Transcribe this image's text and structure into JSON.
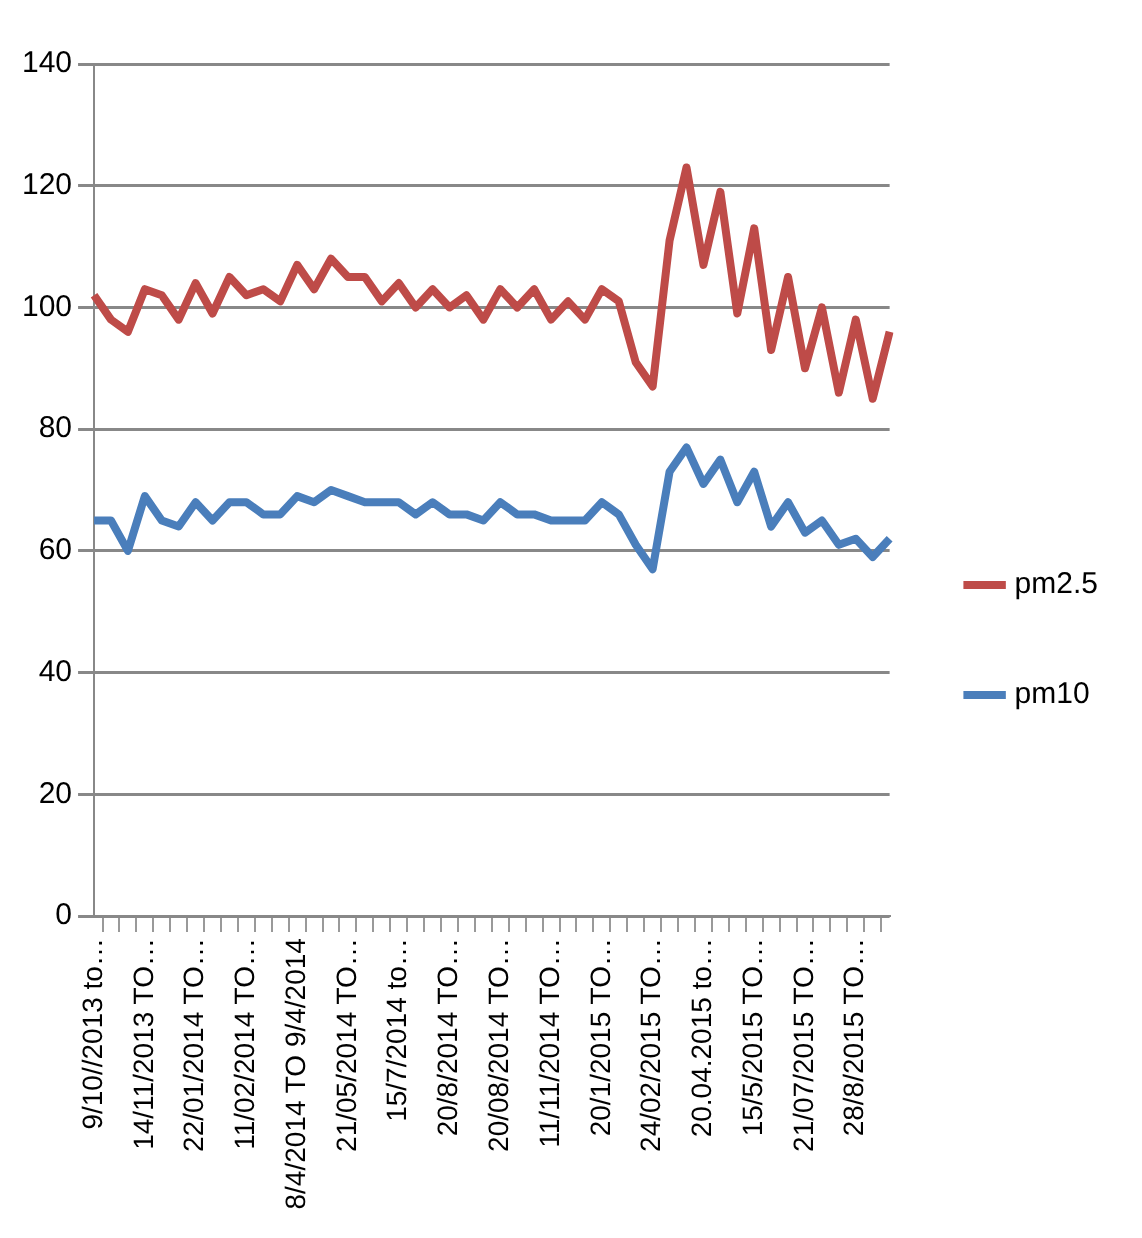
{
  "chart_data": {
    "type": "line",
    "categories": [
      "9/10//2013 to…",
      null,
      null,
      "14/11/2013 TO…",
      null,
      null,
      "22/01/2014 TO…",
      null,
      null,
      "11/02/2014 TO…",
      null,
      null,
      "8/4/2014 TO 9/4/2014",
      null,
      null,
      "21/05/2014 TO…",
      null,
      null,
      "15/7/2014 to…",
      null,
      null,
      "20/8/2014 TO…",
      null,
      null,
      "20/08/2014 TO…",
      null,
      null,
      "11/11/2014 TO…",
      null,
      null,
      "20/1/2015 TO…",
      null,
      null,
      "24/02/2015 TO…",
      null,
      null,
      "20.04.2015 to…",
      null,
      null,
      "15/5/2015 TO…",
      null,
      null,
      "21/07/2015 TO…",
      null,
      null,
      "28/8/2015 TO…",
      null,
      null
    ],
    "series": [
      {
        "name": "pm2.5",
        "color": "#be4b48",
        "values": [
          102,
          98,
          96,
          103,
          102,
          98,
          104,
          99,
          105,
          102,
          103,
          101,
          107,
          103,
          108,
          105,
          105,
          101,
          104,
          100,
          103,
          100,
          102,
          98,
          103,
          100,
          103,
          98,
          101,
          98,
          103,
          101,
          91,
          87,
          111,
          123,
          107,
          119,
          99,
          113,
          93,
          105,
          90,
          100,
          86,
          98,
          85,
          96
        ]
      },
      {
        "name": "pm10",
        "color": "#4a7ebb",
        "values": [
          65,
          65,
          60,
          69,
          65,
          64,
          68,
          65,
          68,
          68,
          66,
          66,
          69,
          68,
          70,
          69,
          68,
          68,
          68,
          66,
          68,
          66,
          66,
          65,
          68,
          66,
          66,
          65,
          65,
          65,
          68,
          66,
          61,
          57,
          73,
          77,
          71,
          75,
          68,
          73,
          64,
          68,
          63,
          65,
          61,
          62,
          59,
          62
        ]
      }
    ],
    "ylim": [
      0,
      140
    ],
    "yticks": [
      0,
      20,
      40,
      60,
      80,
      100,
      120,
      140
    ],
    "grid": "y",
    "legend": "right",
    "marker": "none",
    "line_style": "solid"
  }
}
